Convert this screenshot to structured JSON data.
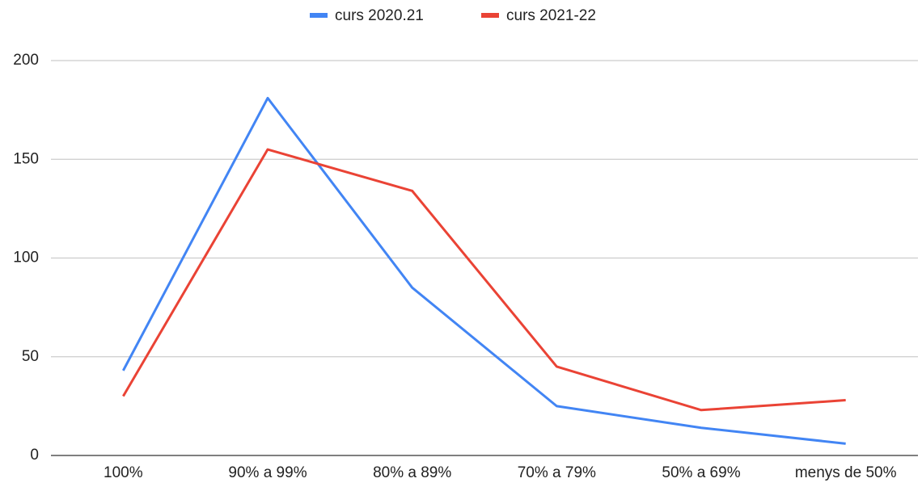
{
  "chart_data": {
    "type": "line",
    "categories": [
      "100%",
      "90% a 99%",
      "80% a 89%",
      "70% a 79%",
      "50% a 69%",
      "menys de 50%"
    ],
    "series": [
      {
        "name": "curs 2020.21",
        "color": "#4285f4",
        "values": [
          43,
          181,
          85,
          25,
          14,
          6
        ]
      },
      {
        "name": "curs 2021-22",
        "color": "#ea4335",
        "values": [
          30,
          155,
          134,
          45,
          23,
          28
        ]
      }
    ],
    "ylim": [
      0,
      200
    ],
    "yticks": [
      0,
      50,
      100,
      150,
      200
    ],
    "grid": true,
    "legend": "top"
  }
}
